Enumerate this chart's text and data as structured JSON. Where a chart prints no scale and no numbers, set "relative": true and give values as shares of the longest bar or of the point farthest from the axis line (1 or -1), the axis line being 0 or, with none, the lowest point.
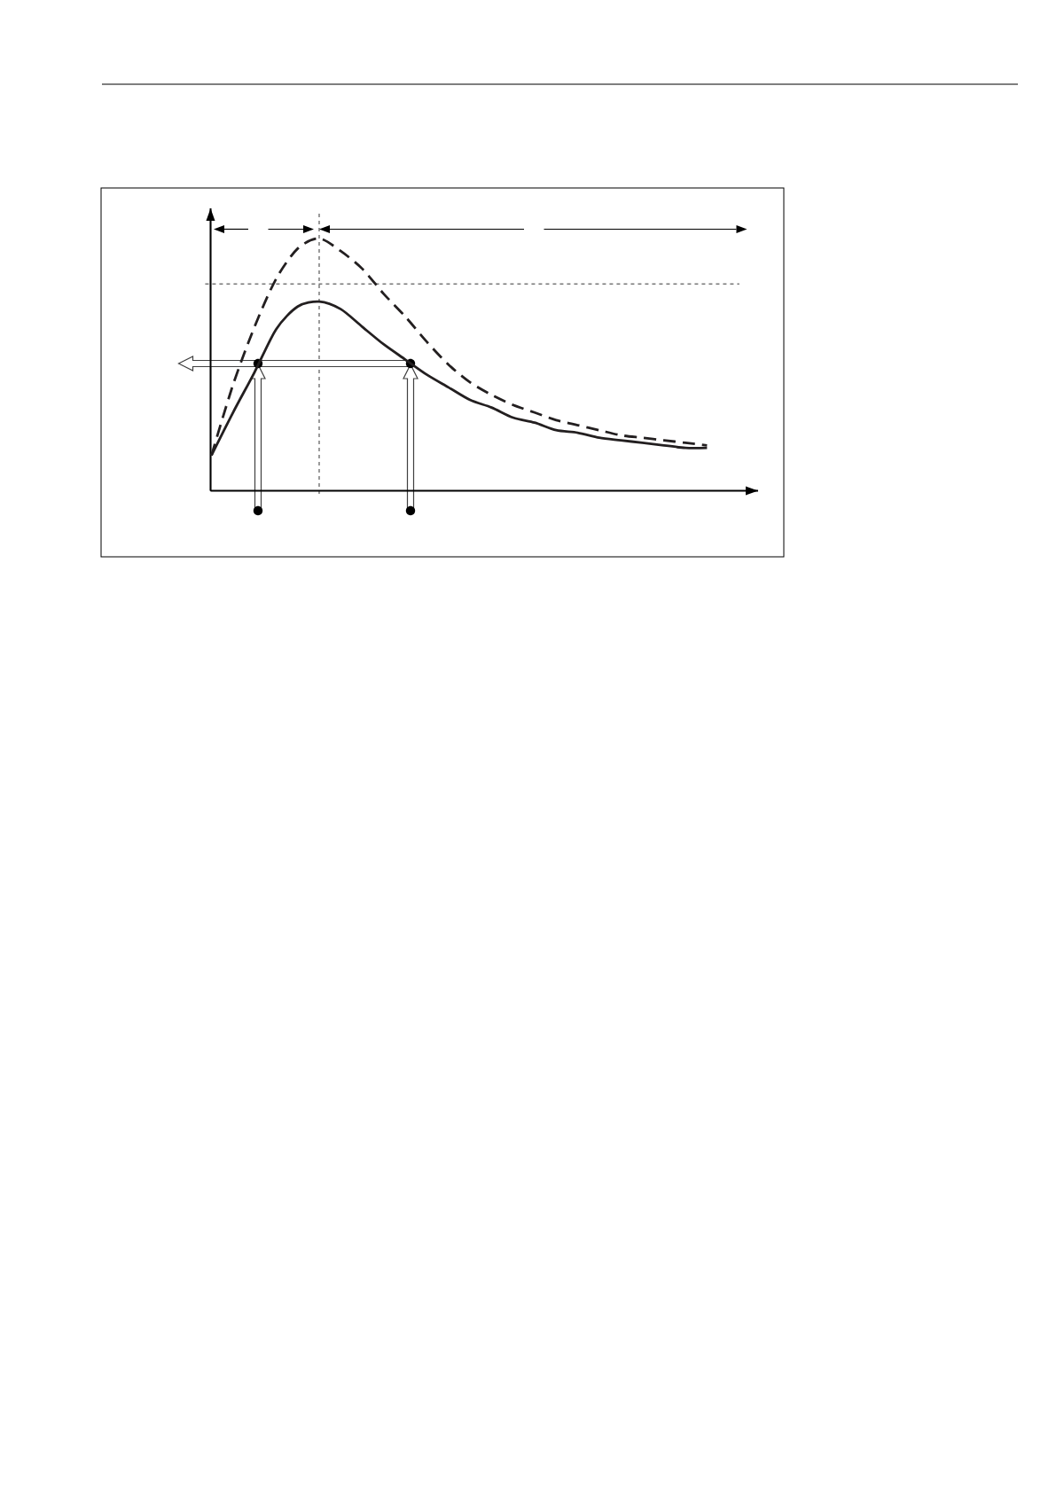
{
  "chart_data": {
    "type": "line",
    "relative": true,
    "categories": [
      null,
      null,
      null,
      null,
      null,
      null,
      null,
      null,
      null,
      null,
      null,
      null,
      null,
      null,
      null,
      null,
      null,
      null,
      null,
      null,
      null,
      null,
      null,
      null
    ],
    "series": [
      {
        "color": "#231f20",
        "line_style": "solid",
        "values": [
          0.14,
          0.31,
          0.47,
          0.64,
          0.73,
          0.75,
          0.72,
          0.65,
          0.58,
          0.52,
          0.46,
          0.41,
          0.36,
          0.33,
          0.29,
          0.27,
          0.24,
          0.23,
          0.21,
          0.2,
          0.19,
          0.18,
          0.17,
          0.17
        ]
      },
      {
        "color": "#231f20",
        "line_style": "dashed",
        "values": [
          0.14,
          0.42,
          0.65,
          0.84,
          0.96,
          1.0,
          0.95,
          0.88,
          0.78,
          0.69,
          0.59,
          0.5,
          0.43,
          0.38,
          0.34,
          0.31,
          0.28,
          0.26,
          0.24,
          0.22,
          0.21,
          0.2,
          0.19,
          0.18
        ]
      }
    ],
    "ref_lines": [
      {
        "axis": "y",
        "value": 0.82,
        "line_style": "dotted"
      }
    ]
  }
}
